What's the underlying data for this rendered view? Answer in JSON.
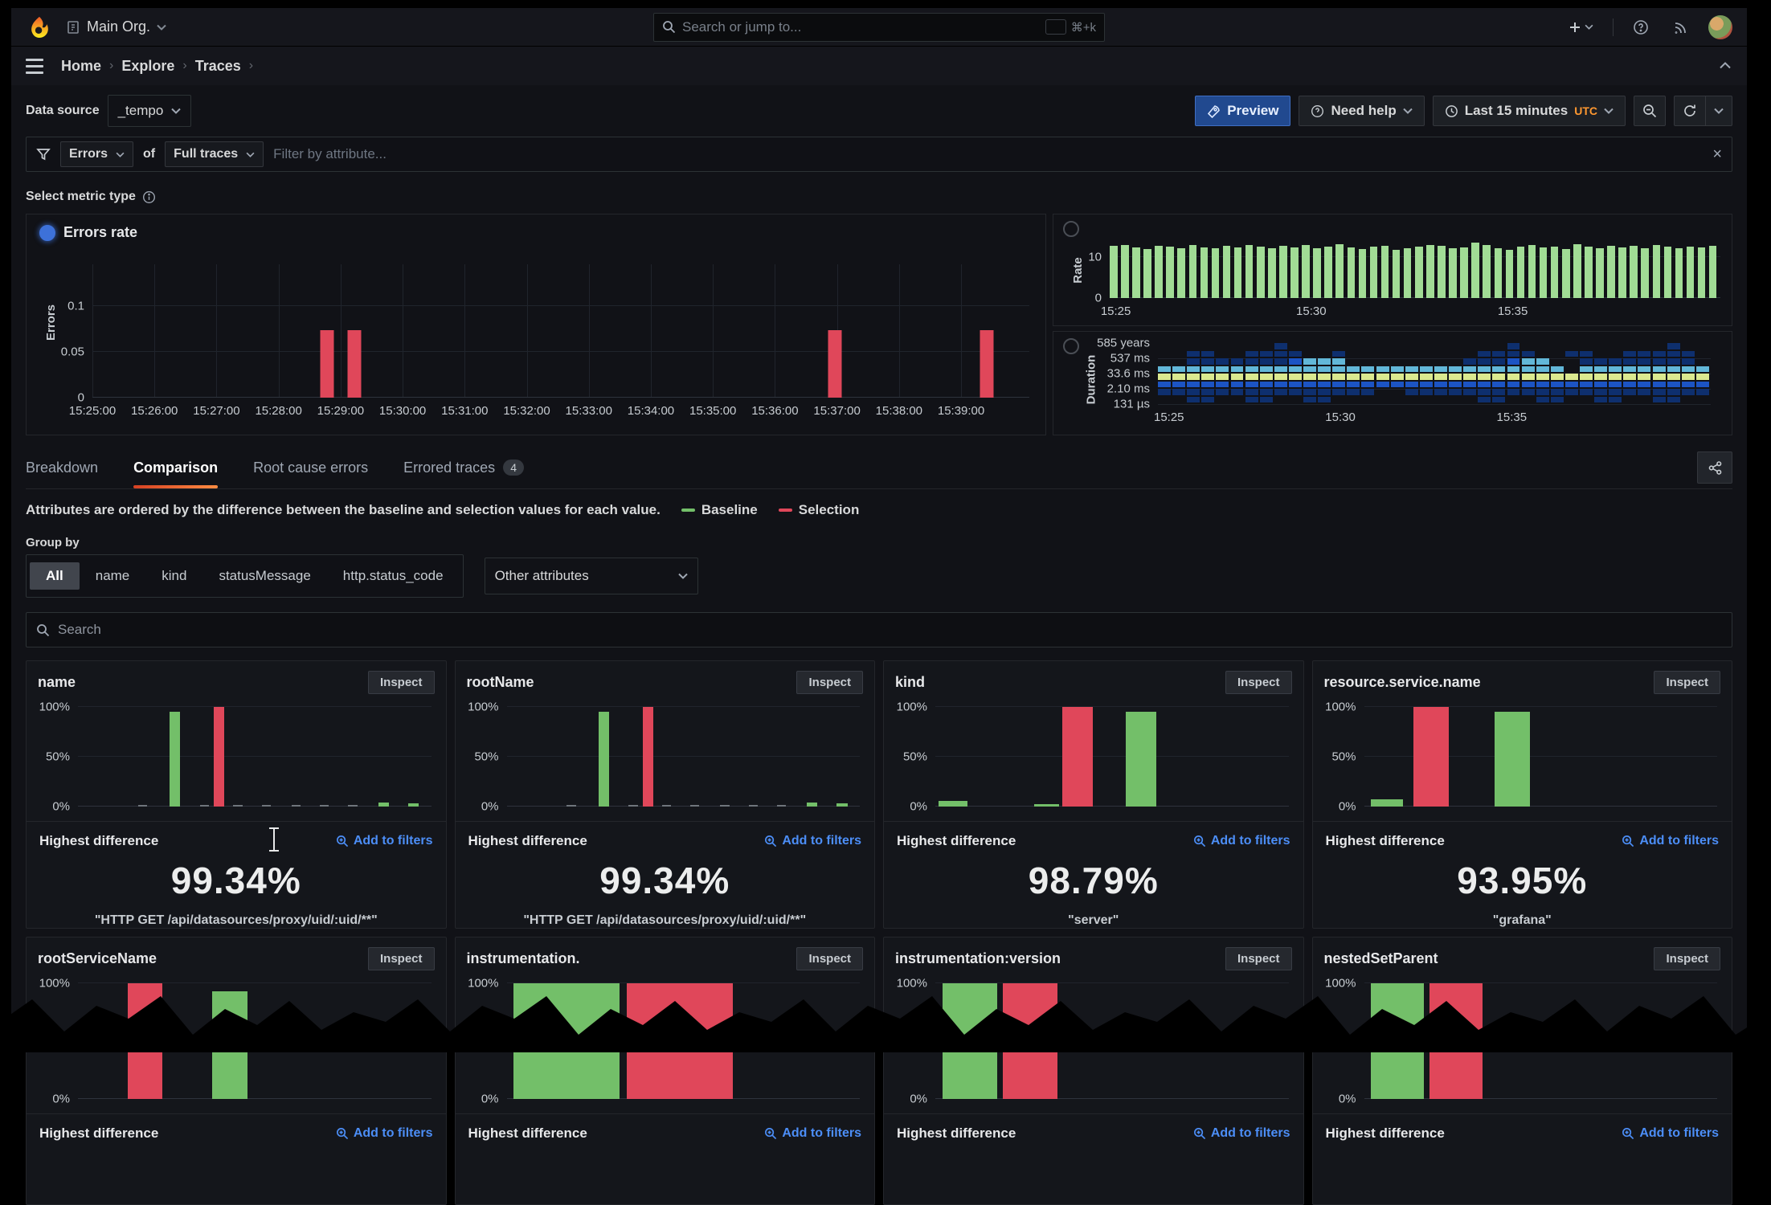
{
  "colors": {
    "baseline": "#73bf69",
    "selection": "#e0475a",
    "muted": "#6f757c",
    "link": "#4c8ef7",
    "tab_underline": "#ff7a2f",
    "utc_text": "#ff9830",
    "rate_bar": "#a1dc95",
    "errors_bar": "#e0475a"
  },
  "topnav": {
    "org": "Main Org.",
    "search_placeholder": "Search or jump to...",
    "shortcut": "⌘+k"
  },
  "breadcrumb": {
    "items": [
      "Home",
      "Explore",
      "Traces"
    ]
  },
  "toolbar": {
    "datasource_label": "Data source",
    "datasource_value": "_tempo",
    "preview_label": "Preview",
    "need_help_label": "Need help",
    "time_range_label": "Last 15 minutes",
    "timezone": "UTC"
  },
  "filterbar": {
    "primary": "Errors",
    "connector": "of",
    "secondary": "Full traces",
    "placeholder": "Filter by attribute..."
  },
  "metric_selector": {
    "label": "Select metric type",
    "options": [
      "Errors rate"
    ],
    "selected": "Errors rate"
  },
  "panels": {
    "errors": {
      "ylabel": "Errors"
    },
    "rate": {
      "ylabel": "Rate"
    },
    "duration": {
      "ylabel": "Duration"
    }
  },
  "tabs": {
    "items": [
      {
        "label": "Breakdown"
      },
      {
        "label": "Comparison",
        "active": true
      },
      {
        "label": "Root cause errors"
      },
      {
        "label": "Errored traces",
        "badge": "4"
      }
    ]
  },
  "comparison": {
    "note": "Attributes are ordered by the difference between the baseline and selection values for each value.",
    "legend": [
      {
        "label": "Baseline",
        "color": "#73bf69"
      },
      {
        "label": "Selection",
        "color": "#e0475a"
      }
    ]
  },
  "group_by": {
    "label": "Group by",
    "options": [
      "All",
      "name",
      "kind",
      "statusMessage",
      "http.status_code"
    ],
    "selected": "All",
    "other": "Other attributes"
  },
  "attribute_search": {
    "placeholder": "Search"
  },
  "cards": {
    "inspect_label": "Inspect",
    "highest_label": "Highest difference",
    "add_filters_label": "Add to filters",
    "yticks": [
      "100%",
      "50%",
      "0%"
    ],
    "items": [
      {
        "title": "name",
        "value": "99.34%",
        "caption": "\"HTTP GET /api/datasources/proxy/uid/:uid/**\""
      },
      {
        "title": "rootName",
        "value": "99.34%",
        "caption": "\"HTTP GET /api/datasources/proxy/uid/:uid/**\""
      },
      {
        "title": "kind",
        "value": "98.79%",
        "caption": "\"server\""
      },
      {
        "title": "resource.service.name",
        "value": "93.95%",
        "caption": "\"grafana\""
      },
      {
        "title": "rootServiceName",
        "value": null,
        "caption": null
      },
      {
        "title": "instrumentation.",
        "value": null,
        "caption": null
      },
      {
        "title": "instrumentation:version",
        "value": null,
        "caption": null
      },
      {
        "title": "nestedSetParent",
        "value": null,
        "caption": null
      }
    ]
  },
  "chart_data": [
    {
      "id": "errors_rate",
      "type": "bar",
      "title": "Errors rate",
      "ylabel": "Errors",
      "xticks": [
        "15:25:00",
        "15:26:00",
        "15:27:00",
        "15:28:00",
        "15:29:00",
        "15:30:00",
        "15:31:00",
        "15:32:00",
        "15:33:00",
        "15:34:00",
        "15:35:00",
        "15:36:00",
        "15:37:00",
        "15:38:00",
        "15:39:00"
      ],
      "x_span_minutes": 15.1,
      "ylim": [
        0,
        0.145
      ],
      "yticks": [
        {
          "v": 0,
          "l": "0"
        },
        {
          "v": 0.05,
          "l": "0.05"
        },
        {
          "v": 0.1,
          "l": "0.1"
        }
      ],
      "bars": [
        {
          "t": 3.78,
          "v": 0.073
        },
        {
          "t": 4.22,
          "v": 0.073
        },
        {
          "t": 11.97,
          "v": 0.073
        },
        {
          "t": 14.42,
          "v": 0.073
        }
      ]
    },
    {
      "id": "rate",
      "type": "bar",
      "title": "Rate",
      "ylabel": "Rate",
      "ylim": [
        0,
        14
      ],
      "yticks": [
        {
          "v": 10,
          "l": "10"
        },
        {
          "v": 0,
          "l": "0"
        }
      ],
      "xticks": [
        {
          "pos": 1,
          "l": "15:25"
        },
        {
          "pos": 33,
          "l": "15:30"
        },
        {
          "pos": 66,
          "l": "15:35"
        }
      ],
      "values": [
        12.6,
        12.9,
        12.3,
        11.9,
        12.7,
        12.4,
        12.1,
        12.8,
        12.3,
        12.0,
        12.6,
        12.2,
        12.9,
        12.4,
        12.1,
        12.7,
        12.3,
        12.8,
        12.1,
        12.5,
        13.0,
        12.2,
        11.9,
        12.5,
        12.7,
        11.7,
        12.1,
        12.4,
        12.9,
        12.6,
        12.0,
        12.3,
        13.4,
        12.8,
        12.1,
        11.6,
        12.4,
        12.8,
        12.2,
        12.5,
        11.9,
        13.0,
        12.4,
        12.1,
        12.7,
        12.3,
        12.6,
        12.0,
        12.8,
        12.4,
        12.1,
        12.5,
        12.2,
        12.7
      ]
    },
    {
      "id": "duration",
      "type": "heatmap",
      "title": "Duration",
      "ylabel": "Duration",
      "yticks": [
        "585 years",
        "537 ms",
        "33.6 ms",
        "2.10 ms",
        "131 µs"
      ],
      "xticks": [
        {
          "pos": 2,
          "l": "15:25"
        },
        {
          "pos": 33,
          "l": "15:30"
        },
        {
          "pos": 64,
          "l": "15:35"
        }
      ],
      "cols": 38,
      "palette": {
        "1": "#0e2f6e",
        "2": "#1c54c4",
        "3": "#62b7d8",
        "4": "#dbe98f"
      },
      "rows": [
        "00000000100000000000000010000000000100",
        "00110011110010000000001111001100111110",
        "00111111123330000000011123300111111110",
        "33333333333333333333333333330333333333",
        "44444444444444444444444444444444444444",
        "22222222222222222222222222222222222222",
        "11111111111111100111111111111111111111",
        "00110011001100000000001100110011001100"
      ]
    },
    {
      "title": "name",
      "type": "bar",
      "ylim": [
        0,
        100
      ],
      "bars": [
        {
          "x": 17,
          "w": 2.6,
          "h": 1.6,
          "c": "muted"
        },
        {
          "x": 26,
          "w": 3,
          "h": 95,
          "c": "baseline"
        },
        {
          "x": 34.5,
          "w": 2.6,
          "h": 1.6,
          "c": "muted"
        },
        {
          "x": 38.5,
          "w": 3,
          "h": 100,
          "c": "selection"
        },
        {
          "x": 44,
          "w": 2.6,
          "h": 1.6,
          "c": "muted"
        },
        {
          "x": 52,
          "w": 2.6,
          "h": 1.6,
          "c": "muted"
        },
        {
          "x": 60.5,
          "w": 2.6,
          "h": 1.6,
          "c": "muted"
        },
        {
          "x": 68.5,
          "w": 2.6,
          "h": 1.6,
          "c": "muted"
        },
        {
          "x": 76.5,
          "w": 2.6,
          "h": 1.6,
          "c": "muted"
        },
        {
          "x": 85,
          "w": 3,
          "h": 4,
          "c": "baseline"
        },
        {
          "x": 93.5,
          "w": 3,
          "h": 3,
          "c": "baseline"
        }
      ]
    },
    {
      "title": "rootName",
      "type": "bar",
      "ylim": [
        0,
        100
      ],
      "bars": [
        {
          "x": 17,
          "w": 2.6,
          "h": 1.6,
          "c": "muted"
        },
        {
          "x": 26,
          "w": 3,
          "h": 95,
          "c": "baseline"
        },
        {
          "x": 34.5,
          "w": 2.6,
          "h": 1.6,
          "c": "muted"
        },
        {
          "x": 38.5,
          "w": 3,
          "h": 100,
          "c": "selection"
        },
        {
          "x": 44,
          "w": 2.6,
          "h": 1.6,
          "c": "muted"
        },
        {
          "x": 52,
          "w": 2.6,
          "h": 1.6,
          "c": "muted"
        },
        {
          "x": 60.5,
          "w": 2.6,
          "h": 1.6,
          "c": "muted"
        },
        {
          "x": 68.5,
          "w": 2.6,
          "h": 1.6,
          "c": "muted"
        },
        {
          "x": 76.5,
          "w": 2.6,
          "h": 1.6,
          "c": "muted"
        },
        {
          "x": 85,
          "w": 3,
          "h": 4,
          "c": "baseline"
        },
        {
          "x": 93.5,
          "w": 3,
          "h": 3,
          "c": "baseline"
        }
      ]
    },
    {
      "title": "kind",
      "type": "bar",
      "ylim": [
        0,
        100
      ],
      "bars": [
        {
          "x": 1,
          "w": 8,
          "h": 6,
          "c": "baseline"
        },
        {
          "x": 28,
          "w": 7,
          "h": 2.5,
          "c": "baseline"
        },
        {
          "x": 36,
          "w": 8.5,
          "h": 100,
          "c": "selection"
        },
        {
          "x": 54,
          "w": 8.5,
          "h": 95,
          "c": "baseline"
        }
      ]
    },
    {
      "title": "resource.service.name",
      "type": "bar",
      "ylim": [
        0,
        100
      ],
      "bars": [
        {
          "x": 2,
          "w": 9,
          "h": 7,
          "c": "baseline"
        },
        {
          "x": 14,
          "w": 10,
          "h": 100,
          "c": "selection"
        },
        {
          "x": 37,
          "w": 10,
          "h": 95,
          "c": "baseline"
        }
      ]
    },
    {
      "title": "rootServiceName",
      "type": "bar",
      "ylim": [
        0,
        100
      ],
      "bars": [
        {
          "x": 14,
          "w": 10,
          "h": 100,
          "c": "selection"
        },
        {
          "x": 38,
          "w": 10,
          "h": 93,
          "c": "baseline"
        }
      ]
    },
    {
      "title": "instrumentation.",
      "type": "bar",
      "ylim": [
        0,
        100
      ],
      "bars": [
        {
          "x": 2,
          "w": 30,
          "h": 100,
          "c": "baseline"
        },
        {
          "x": 34,
          "w": 30,
          "h": 100,
          "c": "selection"
        }
      ]
    },
    {
      "title": "instrumentation:version",
      "type": "bar",
      "ylim": [
        0,
        100
      ],
      "bars": [
        {
          "x": 2,
          "w": 15.5,
          "h": 100,
          "c": "baseline"
        },
        {
          "x": 19,
          "w": 15.5,
          "h": 100,
          "c": "selection"
        }
      ]
    },
    {
      "title": "nestedSetParent",
      "type": "bar",
      "ylim": [
        0,
        100
      ],
      "bars": [
        {
          "x": 2,
          "w": 15,
          "h": 100,
          "c": "baseline"
        },
        {
          "x": 18.5,
          "w": 15,
          "h": 100,
          "c": "selection"
        }
      ]
    }
  ]
}
